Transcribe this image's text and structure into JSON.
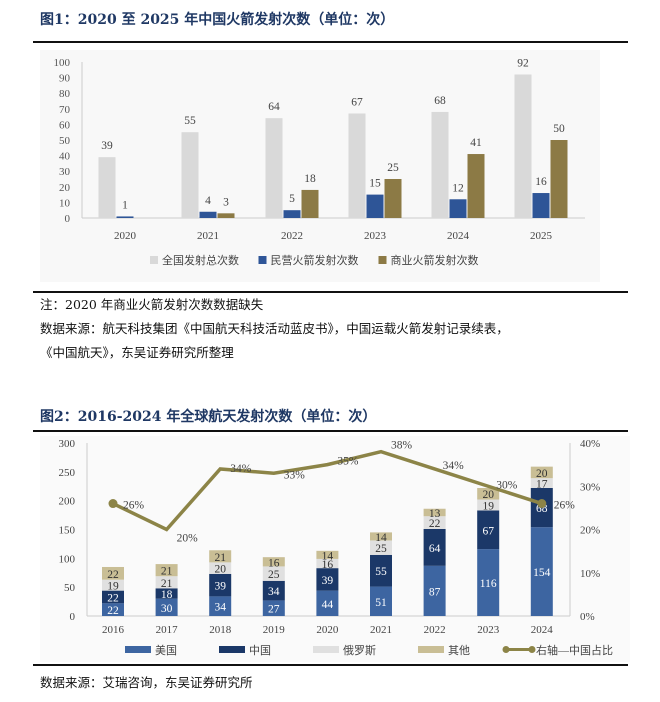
{
  "fig1": {
    "title": "图1：2020 至 2025 年中国火箭发射次数（单位：次）",
    "note": "注：2020 年商业火箭发射次数数据缺失",
    "source_line1": "数据来源：航天科技集团《中国航天科技活动蓝皮书》，中国运载火箭发射记录续表，",
    "source_line2": "《中国航天》，东吴证券研究所整理"
  },
  "fig2": {
    "title": "图2：2016-2024 年全球航天发射次数（单位：次）",
    "source": "数据来源：艾瑞咨询，东吴证券研究所"
  },
  "chart_data": [
    {
      "type": "bar",
      "title": "2020 至 2025 年中国火箭发射次数（单位：次）",
      "categories": [
        "2020",
        "2021",
        "2022",
        "2023",
        "2024",
        "2025"
      ],
      "ylim": [
        0,
        100
      ],
      "yticks": [
        0,
        10,
        20,
        30,
        40,
        50,
        60,
        70,
        80,
        90,
        100
      ],
      "legend_position": "bottom",
      "series": [
        {
          "name": "全国发射总次数",
          "values": [
            39,
            55,
            64,
            67,
            68,
            92
          ],
          "color": "#d9d9d9"
        },
        {
          "name": "民营火箭发射次数",
          "values": [
            1,
            4,
            5,
            15,
            12,
            16
          ],
          "color": "#2e5597"
        },
        {
          "name": "商业火箭发射次数",
          "values": [
            null,
            3,
            18,
            25,
            41,
            50
          ],
          "color": "#8c7a45"
        }
      ]
    },
    {
      "type": "bar",
      "stacked": true,
      "title": "2016-2024 年全球航天发射次数（单位：次）",
      "categories": [
        "2016",
        "2017",
        "2018",
        "2019",
        "2020",
        "2021",
        "2022",
        "2023",
        "2024"
      ],
      "ylim": [
        0,
        300
      ],
      "yticks": [
        0,
        50,
        100,
        150,
        200,
        250,
        300
      ],
      "y2lim": [
        0,
        40
      ],
      "y2ticks": [
        "0%",
        "10%",
        "20%",
        "30%",
        "40%"
      ],
      "legend_position": "bottom",
      "series": [
        {
          "name": "美国",
          "values": [
            22,
            30,
            34,
            27,
            44,
            51,
            87,
            116,
            154
          ],
          "color": "#3d65a1"
        },
        {
          "name": "中国",
          "values": [
            22,
            18,
            39,
            34,
            39,
            55,
            64,
            67,
            68
          ],
          "color": "#1b3868"
        },
        {
          "name": "俄罗斯",
          "values": [
            19,
            21,
            20,
            25,
            16,
            25,
            22,
            19,
            17
          ],
          "color": "#e0e0e0"
        },
        {
          "name": "其他",
          "values": [
            22,
            21,
            21,
            16,
            14,
            14,
            13,
            20,
            20
          ],
          "color": "#c9be95"
        }
      ],
      "line": {
        "name": "右轴—中国占比",
        "values": [
          26,
          20,
          34,
          33,
          35,
          38,
          34,
          30,
          26
        ],
        "labels": [
          "26%",
          "20%",
          "34%",
          "33%",
          "35%",
          "38%",
          "34%",
          "30%",
          "26%"
        ],
        "color": "#8c8447"
      }
    }
  ]
}
